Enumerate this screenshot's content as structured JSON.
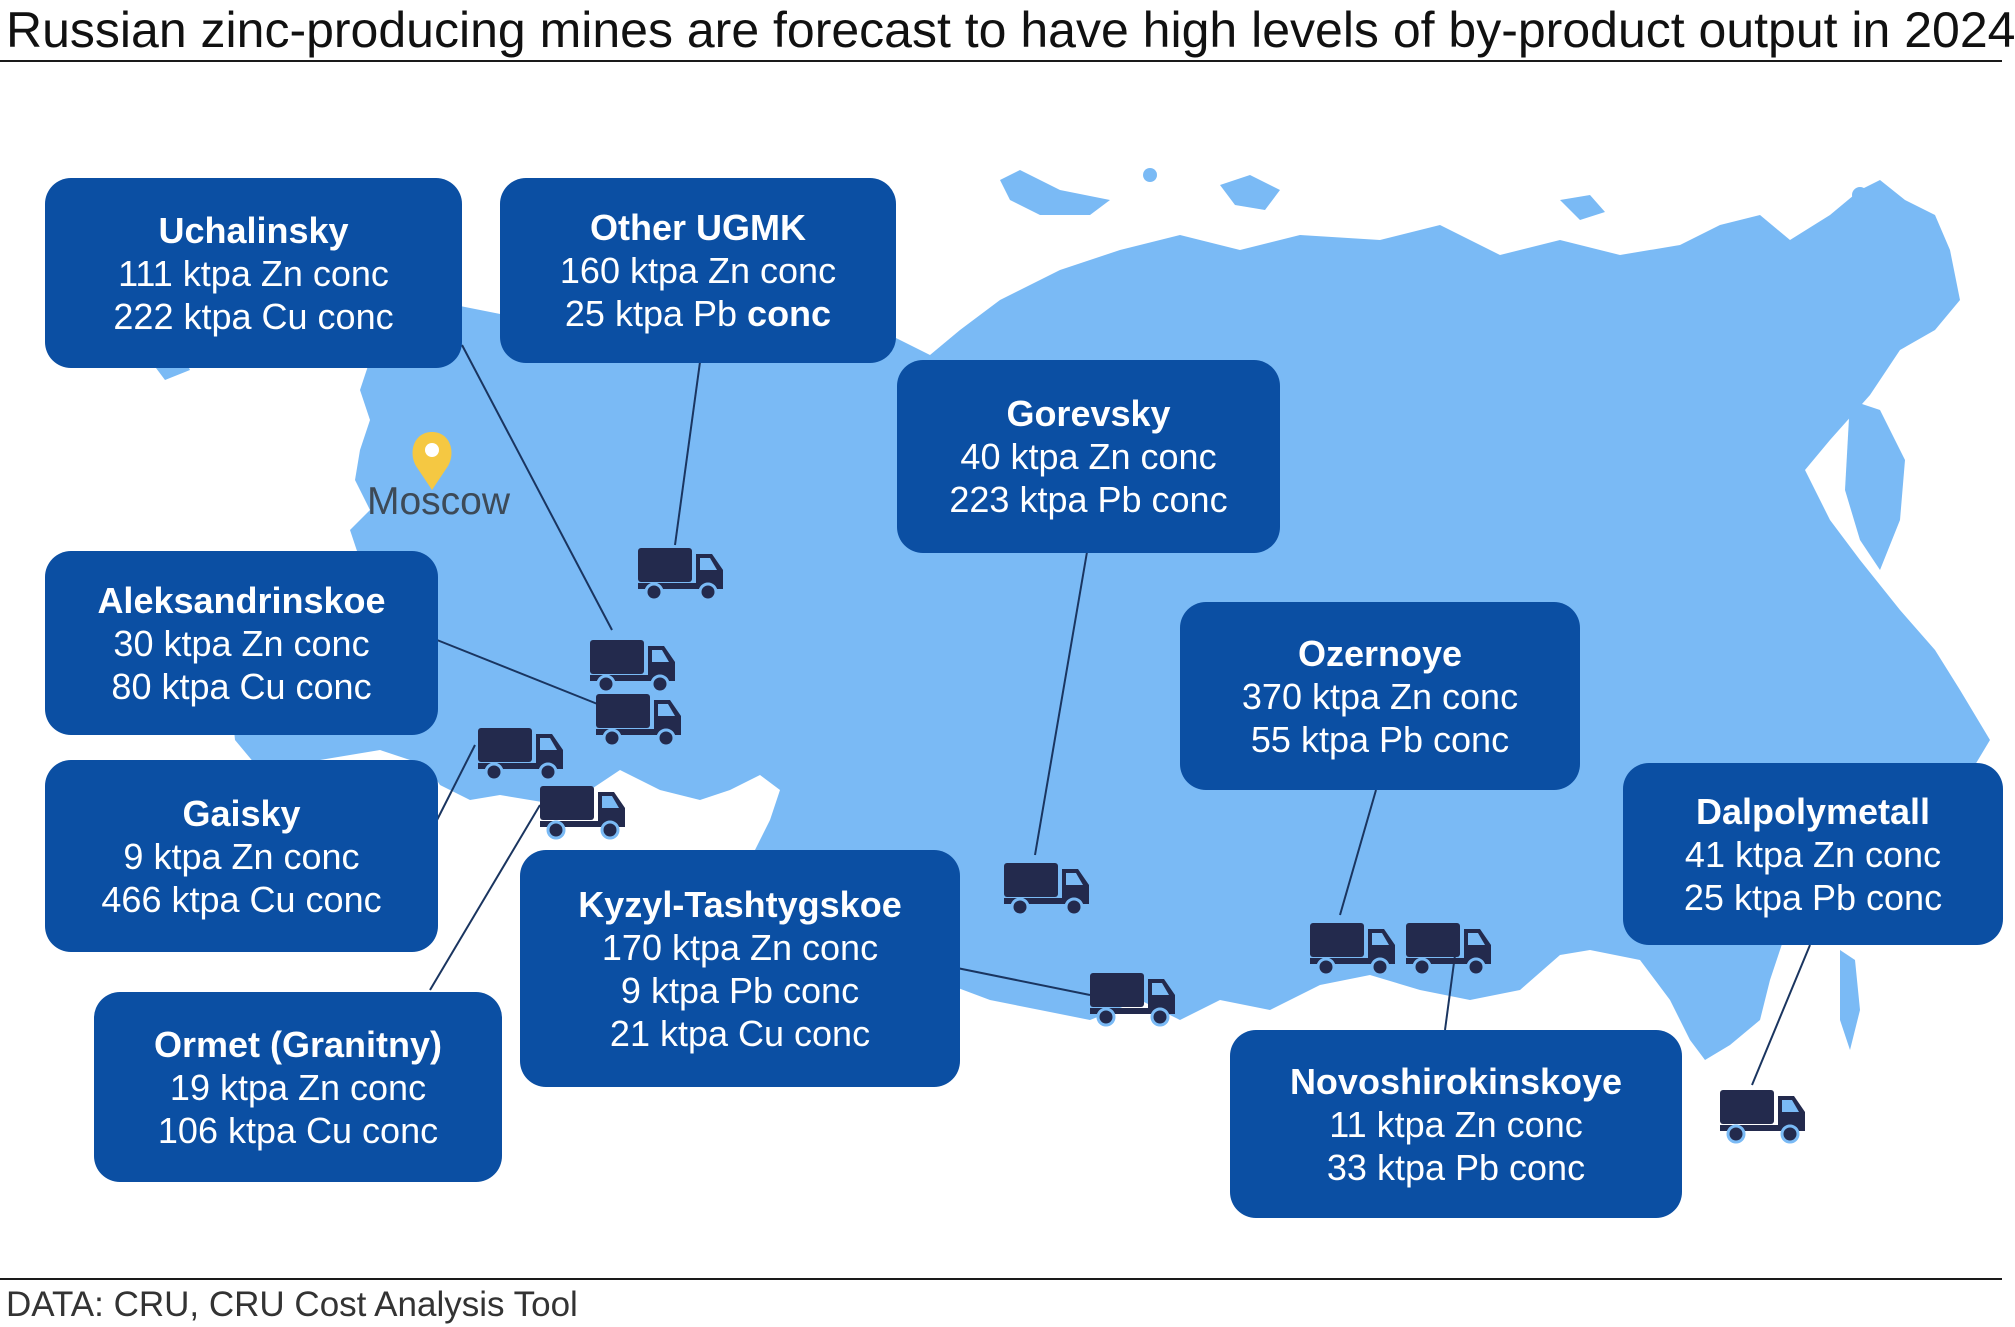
{
  "title": "Russian zinc-producing mines are forecast to have high levels of by-product output in 2024",
  "source": "DATA: CRU, CRU Cost Analysis Tool",
  "city_label": "Moscow",
  "icons": {
    "city": "map-pin-icon",
    "mine": "truck-icon"
  },
  "colors": {
    "land": "#7abaf5",
    "box": "#0b4fa3",
    "truck": "#232a4d",
    "pin": "#f5c842"
  },
  "mines": [
    {
      "name": "Uchalinsky",
      "line1": "111 ktpa Zn conc",
      "line2": "222 ktpa Cu conc"
    },
    {
      "name": "Other UGMK",
      "line1": "160 ktpa Zn conc",
      "line2a": "25 ktpa Pb ",
      "line2b": "conc"
    },
    {
      "name": "Gorevsky",
      "line1": "40 ktpa Zn conc",
      "line2": "223 ktpa Pb conc"
    },
    {
      "name": "Aleksandrinskoe",
      "line1": "30 ktpa Zn conc",
      "line2": "80 ktpa Cu conc"
    },
    {
      "name": "Ozernoye",
      "line1": "370 ktpa Zn conc",
      "line2": "55 ktpa Pb conc"
    },
    {
      "name": "Gaisky",
      "line1": "9 ktpa Zn conc",
      "line2": "466 ktpa Cu conc"
    },
    {
      "name": "Dalpolymetall",
      "line1": "41 ktpa Zn conc",
      "line2": "25 ktpa Pb conc"
    },
    {
      "name": "Kyzyl-Tashtygskoe",
      "line1": "170 ktpa Zn conc",
      "line2": "9 ktpa Pb conc",
      "line3": "21 ktpa Cu conc"
    },
    {
      "name": "Ormet (Granitny)",
      "line1": "19 ktpa Zn conc",
      "line2": "106 ktpa Cu conc"
    },
    {
      "name": "Novoshirokinskoye",
      "line1": "11 ktpa Zn conc",
      "line2": "33 ktpa Pb conc"
    }
  ]
}
